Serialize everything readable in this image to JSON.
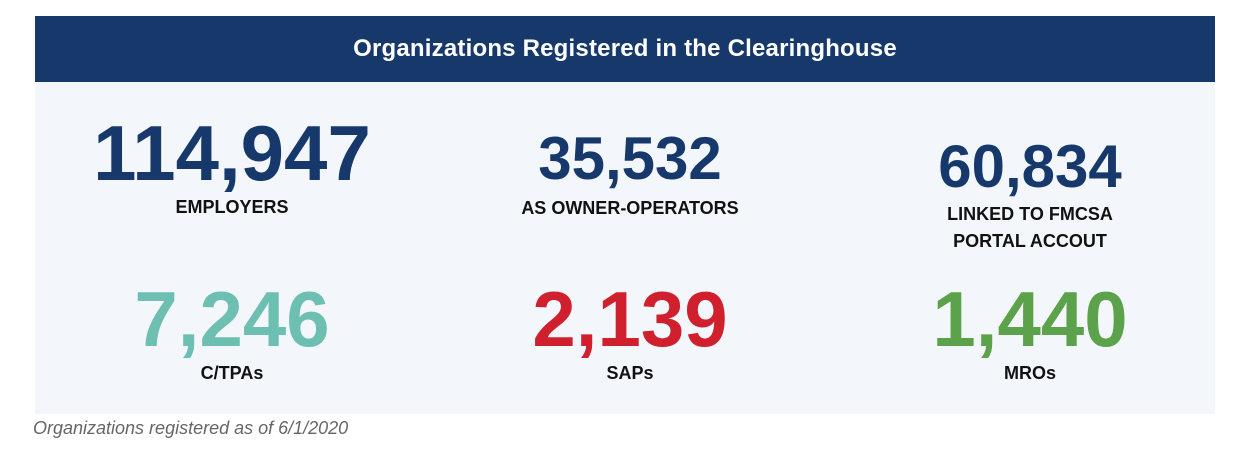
{
  "header": {
    "title": "Organizations Registered in the Clearinghouse",
    "background_color": "#17386b"
  },
  "stats": {
    "employers": {
      "value": "114,947",
      "label": "EMPLOYERS",
      "color": "#17386b"
    },
    "owner_operators": {
      "value": "35,532",
      "label": "AS OWNER-OPERATORS",
      "color": "#17386b"
    },
    "linked": {
      "value": "60,834",
      "label": "LINKED TO FMCSA\nPORTAL ACCOUT",
      "color": "#17386b"
    },
    "ctpas": {
      "value": "7,246",
      "label": "C/TPAs",
      "color": "#6dbfb2"
    },
    "saps": {
      "value": "2,139",
      "label": "SAPs",
      "color": "#d0202e"
    },
    "mros": {
      "value": "1,440",
      "label": "MROs",
      "color": "#5ba24a"
    }
  },
  "footnote": "Organizations registered as of 6/1/2020"
}
